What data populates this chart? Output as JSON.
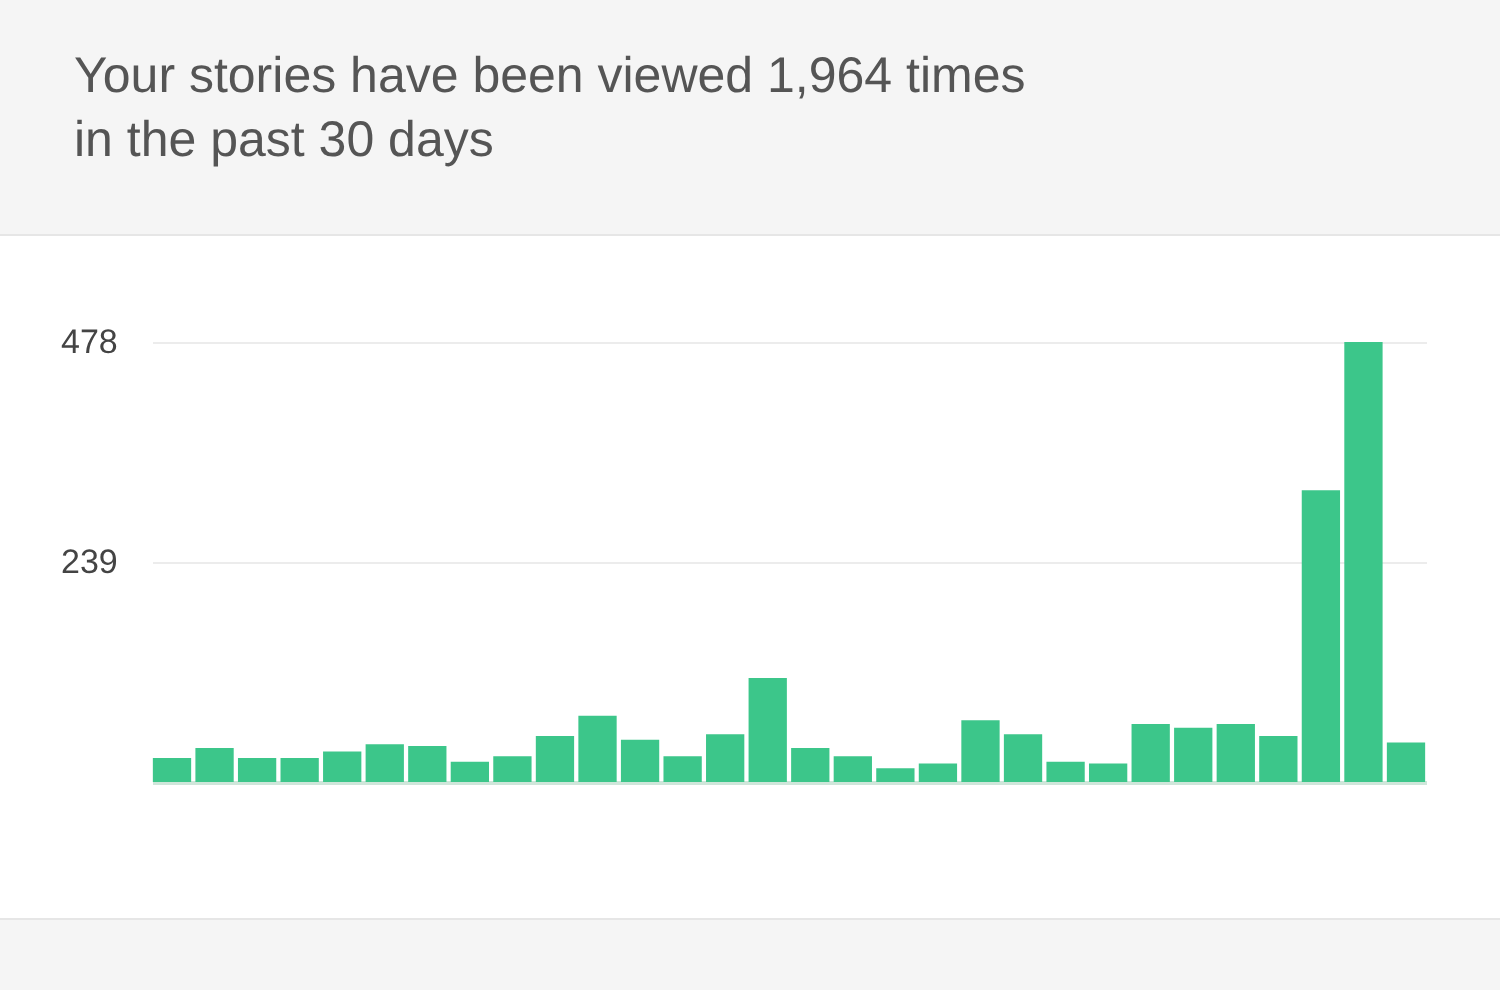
{
  "chart_data": {
    "type": "bar",
    "title": "Your stories have been viewed 1,964 times in the past 30 days",
    "categories": [
      null,
      null,
      null,
      null,
      null,
      null,
      null,
      null,
      null,
      null,
      null,
      null,
      null,
      null,
      null,
      null,
      null,
      null,
      null,
      null,
      null,
      null,
      null,
      null,
      null,
      null,
      null,
      null,
      null,
      null
    ],
    "values": [
      26,
      37,
      26,
      26,
      33,
      41,
      39,
      22,
      28,
      50,
      72,
      46,
      28,
      52,
      113,
      37,
      28,
      15,
      20,
      67,
      52,
      22,
      20,
      63,
      59,
      63,
      50,
      317,
      478,
      43
    ],
    "color": "#3cc68a",
    "ylim": [
      0,
      478
    ],
    "yticks": [
      239,
      478
    ],
    "grid": "y",
    "tick_labels": "y"
  }
}
